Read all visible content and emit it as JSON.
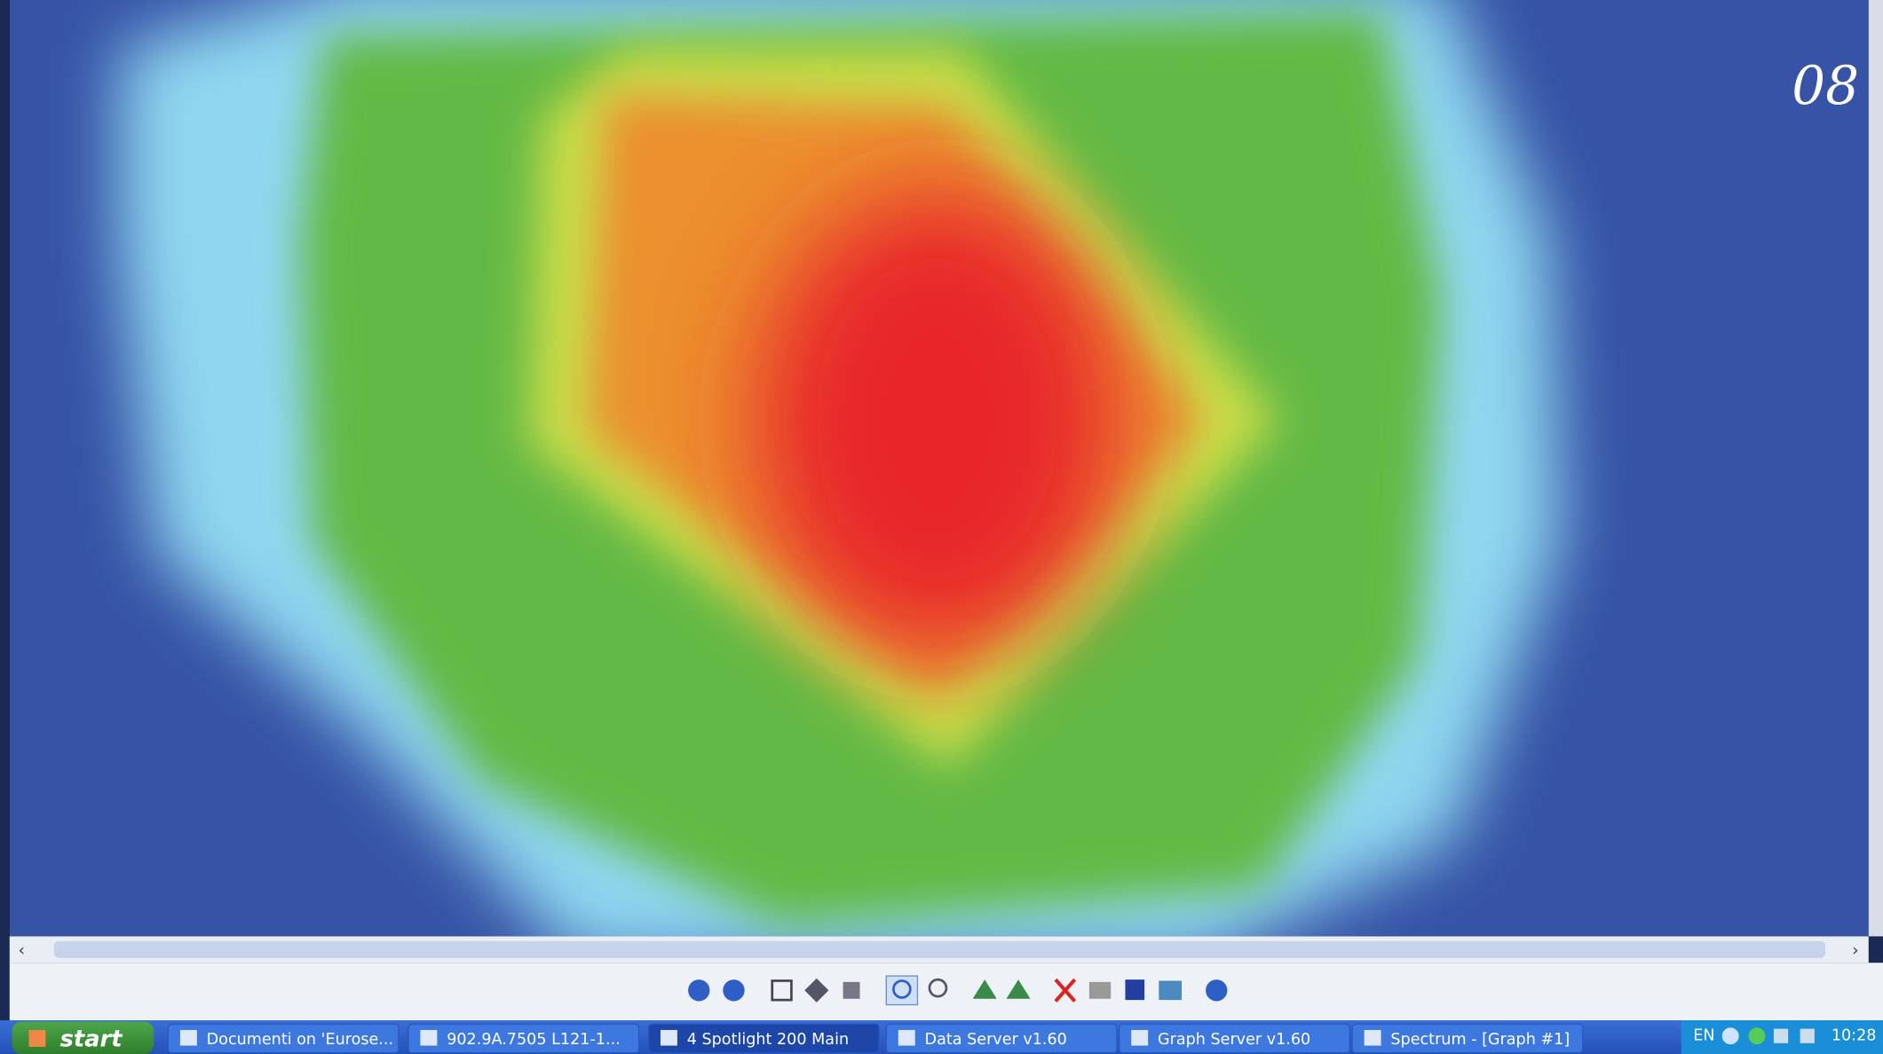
{
  "overlay_label": "08",
  "taskbar": {
    "start": "start",
    "items": [
      "Documenti on 'Eurose...",
      "902.9A.7505 L121-1...",
      "4 Spotlight 200 Main",
      "Data Server v1.60",
      "Graph Server v1.60",
      "Spectrum - [Graph #1]"
    ],
    "tray": {
      "language": "EN",
      "clock": "10:28"
    }
  }
}
